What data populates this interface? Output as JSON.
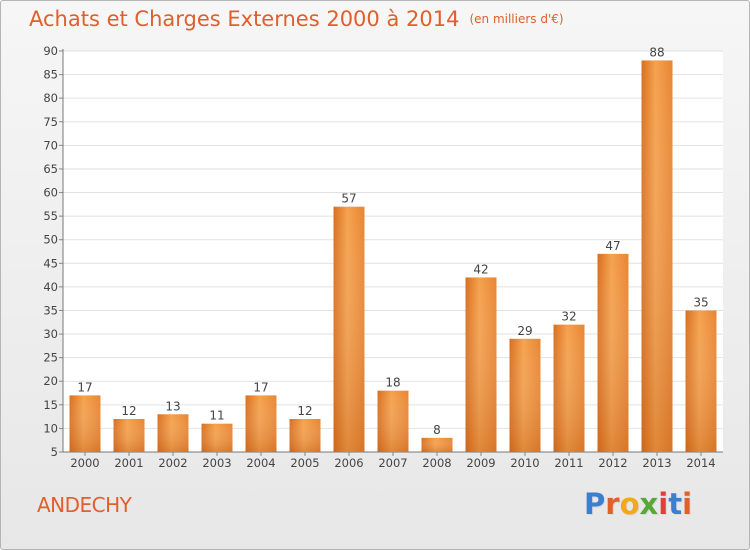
{
  "header": {
    "title": "Achats et Charges Externes 2000 à 2014",
    "unit": "(en milliers d'€)"
  },
  "footer": {
    "place": "ANDECHY",
    "logo_text": "Proxiti",
    "logo_colors": [
      "#3a7fd0",
      "#e05f2a",
      "#f0a81c",
      "#58a835",
      "#e53b3b",
      "#3a7fd0",
      "#e05f2a"
    ]
  },
  "chart_data": {
    "type": "bar",
    "title": "Achats et Charges Externes 2000 à 2014",
    "subtitle": "(en milliers d'€)",
    "categories": [
      "2000",
      "2001",
      "2002",
      "2003",
      "2004",
      "2005",
      "2006",
      "2007",
      "2008",
      "2009",
      "2010",
      "2011",
      "2012",
      "2013",
      "2014"
    ],
    "values": [
      17,
      12,
      13,
      11,
      17,
      12,
      57,
      18,
      8,
      42,
      29,
      32,
      47,
      88,
      35
    ],
    "ylim": [
      5,
      90
    ],
    "yticks": [
      5,
      10,
      15,
      20,
      25,
      30,
      35,
      40,
      45,
      50,
      55,
      60,
      65,
      70,
      75,
      80,
      85,
      90
    ],
    "grid": true,
    "data_labels": true,
    "bar_color": "#f0923d",
    "bar_color_dark": "#d06a1c"
  }
}
